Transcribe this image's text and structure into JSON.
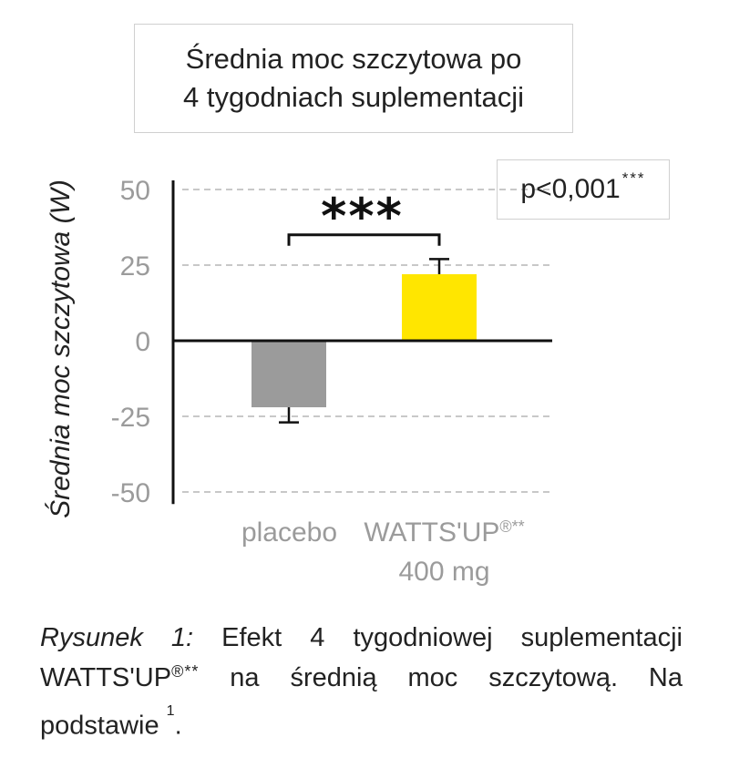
{
  "title_lines": [
    "Średnia moc szczytowa po",
    "4 tygodniach suplementacji"
  ],
  "pvalue": {
    "text": "p<0,001",
    "sup": "***"
  },
  "significance_stars": "***",
  "chart_data": {
    "type": "bar",
    "title": "Średnia moc szczytowa po 4 tygodniach suplementacji",
    "ylabel": "Średnia moc szczytowa (W)",
    "ylim": [
      -50,
      50
    ],
    "yticks": [
      50,
      25,
      0,
      -25,
      -50
    ],
    "yticklabels": [
      "50",
      "25",
      "0",
      "-25",
      "-50"
    ],
    "grid": "dashed horizontal",
    "categories": [
      "placebo",
      "WATTS'UP®** 400 mg"
    ],
    "values": [
      -22,
      22
    ],
    "errors": [
      5,
      5
    ],
    "colors": [
      "#9b9b9b",
      "#ffe600"
    ]
  },
  "categories_display": {
    "placebo": "placebo",
    "watts_line1": "WATTS'UP",
    "watts_sup": "®**",
    "watts_line2": "400 mg"
  },
  "caption": {
    "label": "Rysunek 1:",
    "text1": " Efekt 4 tygodniowej suplementacji WATTS'UP",
    "reg": "®**",
    "text2": " na średnią moc szczytową. Na podstawie ",
    "ref": "1",
    "end": "."
  }
}
